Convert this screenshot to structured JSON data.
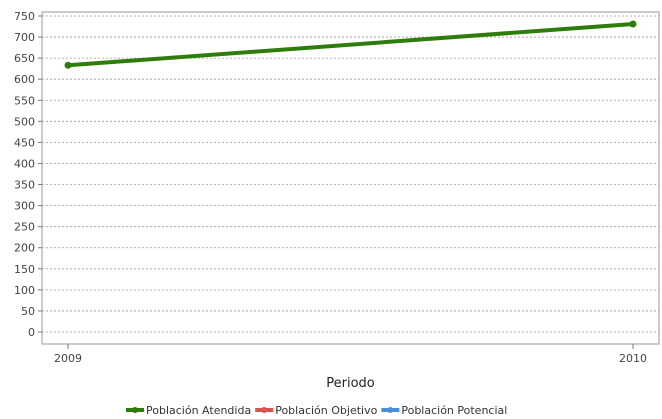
{
  "chart_data": {
    "type": "line",
    "title": "",
    "xlabel": "Periodo",
    "ylabel": "",
    "x": [
      "2009",
      "2010"
    ],
    "ylim": [
      0,
      750
    ],
    "y_ticks": [
      0,
      50,
      100,
      150,
      200,
      250,
      300,
      350,
      400,
      450,
      500,
      550,
      600,
      650,
      700,
      750
    ],
    "grid": true,
    "legend_position": "bottom",
    "series": [
      {
        "name": "Población Atendida",
        "values": [
          633,
          731
        ],
        "color": "#2e7d0a"
      },
      {
        "name": "Población Objetivo",
        "values": [
          null,
          null
        ],
        "color": "#d9534f"
      },
      {
        "name": "Población Potencial",
        "values": [
          null,
          null
        ],
        "color": "#4a90d9"
      }
    ]
  }
}
